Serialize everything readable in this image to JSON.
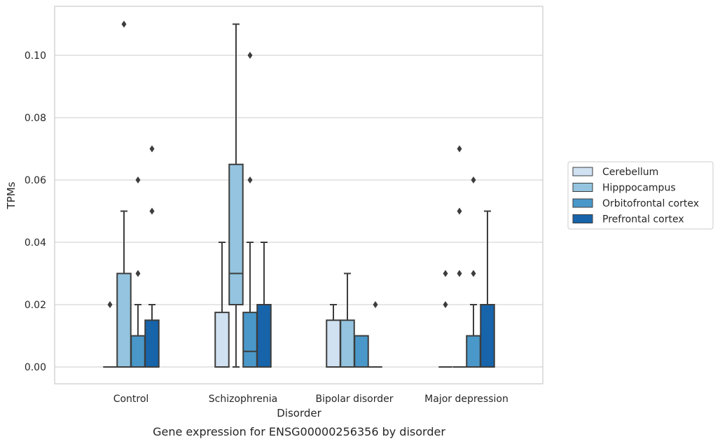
{
  "chart_data": {
    "type": "box",
    "title": "Gene expression for ENSG00000256356 by disorder",
    "xlabel": "Disorder",
    "ylabel": "TPMs",
    "ylim": [
      -0.005,
      0.1155
    ],
    "yticks": [
      "0.00",
      "0.02",
      "0.04",
      "0.06",
      "0.08",
      "0.10"
    ],
    "grid": true,
    "legend_position": "right",
    "categories": [
      "Control",
      "Schizophrenia",
      "Bipolar disorder",
      "Major depression"
    ],
    "series": [
      {
        "name": "Cerebellum",
        "color": "#d0e1f2",
        "boxes": [
          {
            "whislo": 0,
            "q1": 0,
            "med": 0,
            "q3": 0,
            "whishi": 0,
            "fliers": [
              0.02
            ]
          },
          {
            "whislo": 0,
            "q1": 0,
            "med": 0,
            "q3": 0.0175,
            "whishi": 0.04,
            "fliers": []
          },
          {
            "whislo": 0,
            "q1": 0,
            "med": 0,
            "q3": 0.015,
            "whishi": 0.02,
            "fliers": []
          },
          {
            "whislo": 0,
            "q1": 0,
            "med": 0,
            "q3": 0,
            "whishi": 0,
            "fliers": [
              0.02,
              0.03
            ]
          }
        ]
      },
      {
        "name": "Hipppocampus",
        "color": "#94c4df",
        "boxes": [
          {
            "whislo": 0,
            "q1": 0,
            "med": 0,
            "q3": 0.03,
            "whishi": 0.05,
            "fliers": [
              0.11
            ]
          },
          {
            "whislo": 0,
            "q1": 0.02,
            "med": 0.03,
            "q3": 0.065,
            "whishi": 0.11,
            "fliers": []
          },
          {
            "whislo": 0,
            "q1": 0,
            "med": 0,
            "q3": 0.015,
            "whishi": 0.03,
            "fliers": []
          },
          {
            "whislo": 0,
            "q1": 0,
            "med": 0,
            "q3": 0,
            "whishi": 0,
            "fliers": [
              0.03,
              0.05,
              0.07
            ]
          }
        ]
      },
      {
        "name": "Orbitofrontal cortex",
        "color": "#4a98c9",
        "boxes": [
          {
            "whislo": 0,
            "q1": 0,
            "med": 0,
            "q3": 0.01,
            "whishi": 0.02,
            "fliers": [
              0.03,
              0.06
            ]
          },
          {
            "whislo": 0,
            "q1": 0,
            "med": 0.005,
            "q3": 0.0175,
            "whishi": 0.04,
            "fliers": [
              0.06,
              0.1
            ]
          },
          {
            "whislo": 0,
            "q1": 0,
            "med": 0,
            "q3": 0.01,
            "whishi": 0.01,
            "fliers": []
          },
          {
            "whislo": 0,
            "q1": 0,
            "med": 0,
            "q3": 0.01,
            "whishi": 0.02,
            "fliers": [
              0.03,
              0.06
            ]
          }
        ]
      },
      {
        "name": "Prefrontal cortex",
        "color": "#1764ab",
        "boxes": [
          {
            "whislo": 0,
            "q1": 0,
            "med": 0,
            "q3": 0.015,
            "whishi": 0.02,
            "fliers": [
              0.05,
              0.07
            ]
          },
          {
            "whislo": 0,
            "q1": 0,
            "med": 0,
            "q3": 0.02,
            "whishi": 0.04,
            "fliers": []
          },
          {
            "whislo": 0,
            "q1": 0,
            "med": 0,
            "q3": 0,
            "whishi": 0,
            "fliers": [
              0.02
            ]
          },
          {
            "whislo": 0,
            "q1": 0,
            "med": 0,
            "q3": 0.02,
            "whishi": 0.05,
            "fliers": []
          }
        ]
      }
    ]
  }
}
